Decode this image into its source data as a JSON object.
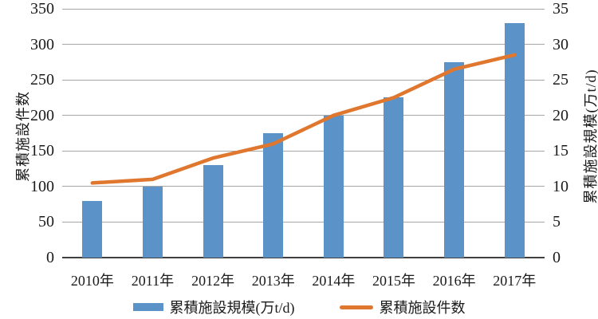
{
  "chart_data": {
    "type": "bar",
    "subtype": "combo-bar-line",
    "categories": [
      "2010年",
      "2011年",
      "2012年",
      "2013年",
      "2014年",
      "2015年",
      "2016年",
      "2017年"
    ],
    "series": [
      {
        "name": "累積施設規模(万t/d)",
        "type": "bar",
        "axis": "right",
        "color": "#5b93c8",
        "values": [
          8,
          10,
          13,
          17.5,
          20,
          22.5,
          27.5,
          33
        ]
      },
      {
        "name": "累積施設件数",
        "type": "line",
        "axis": "left",
        "color": "#e0772f",
        "values": [
          105,
          110,
          140,
          160,
          200,
          225,
          265,
          285
        ]
      }
    ],
    "left_axis": {
      "label": "累積施設件数",
      "min": 0,
      "max": 350,
      "step": 50,
      "ticks": [
        "0",
        "50",
        "100",
        "150",
        "200",
        "250",
        "300",
        "350"
      ]
    },
    "right_axis": {
      "label": "累積施設規模(万t/d)",
      "min": 0,
      "max": 35,
      "step": 5,
      "ticks": [
        "0",
        "5",
        "10",
        "15",
        "20",
        "25",
        "30",
        "35"
      ]
    },
    "grid": true,
    "legend_position": "bottom",
    "colors": {
      "bar": "#5b93c8",
      "line": "#e0772f",
      "gridline": "#a6a6a6",
      "axis_line": "#404040",
      "text": "#1a1a1a",
      "background": "#ffffff"
    }
  },
  "legend": {
    "bar_label": "累積施設規模(万t/d)",
    "line_label": "累積施設件数"
  }
}
